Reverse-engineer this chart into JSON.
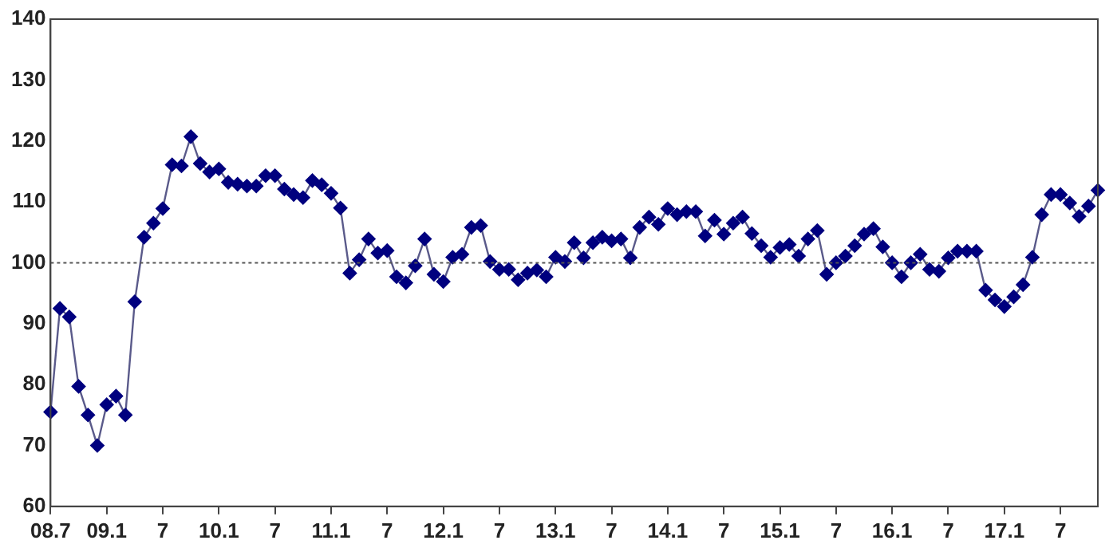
{
  "chart_data": {
    "type": "line",
    "categories": [
      "08.7",
      null,
      null,
      null,
      null,
      null,
      "09.1",
      null,
      null,
      null,
      null,
      null,
      "7",
      null,
      null,
      null,
      null,
      null,
      "10.1",
      null,
      null,
      null,
      null,
      null,
      "7",
      null,
      null,
      null,
      null,
      null,
      "11.1",
      null,
      null,
      null,
      null,
      null,
      "7",
      null,
      null,
      null,
      null,
      null,
      "12.1",
      null,
      null,
      null,
      null,
      null,
      "7",
      null,
      null,
      null,
      null,
      null,
      "13.1",
      null,
      null,
      null,
      null,
      null,
      "7",
      null,
      null,
      null,
      null,
      null,
      "14.1",
      null,
      null,
      null,
      null,
      null,
      "7",
      null,
      null,
      null,
      null,
      null,
      "15.1",
      null,
      null,
      null,
      null,
      null,
      "7",
      null,
      null,
      null,
      null,
      null,
      "16.1",
      null,
      null,
      null,
      null,
      null,
      "7",
      null,
      null,
      null,
      null,
      null,
      "17.1",
      null,
      null,
      null,
      null,
      null,
      "7",
      null,
      null,
      null,
      null
    ],
    "series": [
      {
        "color": "#00007f",
        "values": [
          75.5,
          92.5,
          91.1,
          79.7,
          75,
          70,
          76.7,
          78.1,
          75,
          93.6,
          104.2,
          106.5,
          108.9,
          116.1,
          115.9,
          120.7,
          116.3,
          114.9,
          115.4,
          113.2,
          112.9,
          112.6,
          112.6,
          114.3,
          114.3,
          112.1,
          111.2,
          110.7,
          113.5,
          112.8,
          111.4,
          109,
          98.3,
          100.5,
          103.9,
          101.6,
          102,
          97.7,
          96.7,
          99.5,
          103.9,
          98.1,
          96.9,
          100.9,
          101.4,
          105.8,
          106.1,
          100.2,
          98.9,
          98.9,
          97.2,
          98.3,
          98.8,
          97.7,
          100.9,
          100.2,
          103.3,
          100.8,
          103.3,
          104.2,
          103.6,
          103.9,
          100.8,
          105.8,
          107.5,
          106.3,
          108.9,
          107.9,
          108.4,
          108.4,
          104.4,
          107,
          104.7,
          106.5,
          107.5,
          104.8,
          102.8,
          100.9,
          102.5,
          103,
          101.1,
          103.9,
          105.3,
          98.1,
          100,
          101.1,
          102.8,
          104.7,
          105.6,
          102.6,
          100,
          97.7,
          100,
          101.4,
          98.9,
          98.6,
          100.8,
          101.9,
          101.9,
          101.9,
          95.5,
          93.9,
          92.8,
          94.4,
          96.4,
          100.9,
          107.9,
          111.2,
          111.2,
          109.8,
          107.6,
          109.3,
          111.9
        ]
      }
    ],
    "ylim": [
      60,
      140
    ],
    "yticks": [
      60,
      70,
      80,
      90,
      100,
      110,
      120,
      130,
      140
    ],
    "ref_lines": [
      {
        "axis": "y",
        "value": 100,
        "color": "#555555",
        "line_style": "dotted"
      }
    ],
    "grid": false,
    "legend": false,
    "marker": "diamond",
    "line_style": "solid"
  }
}
